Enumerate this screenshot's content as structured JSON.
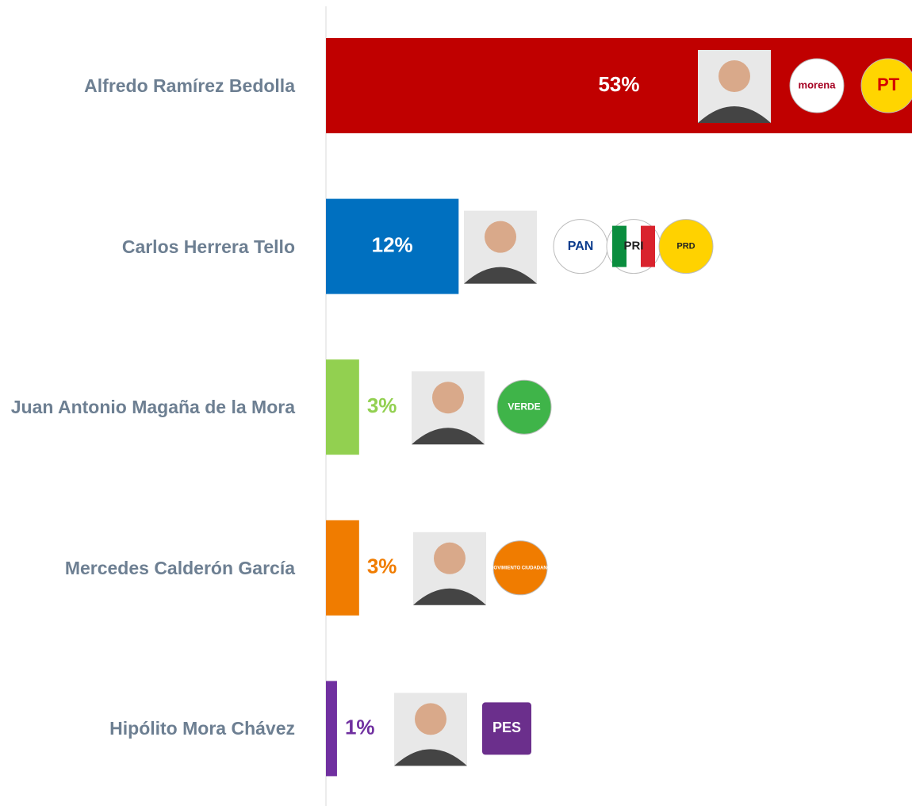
{
  "chart_data": {
    "type": "bar",
    "orientation": "horizontal",
    "categories": [
      "Alfredo Ramírez Bedolla",
      "Carlos Herrera Tello",
      "Juan Antonio Magaña de la Mora",
      "Mercedes Calderón García",
      "Hipólito Mora Chávez"
    ],
    "values": [
      53,
      12,
      3,
      3,
      1
    ],
    "value_labels": [
      "53%",
      "12%",
      "3%",
      "3%",
      "1%"
    ],
    "colors": [
      "#c00000",
      "#0070c0",
      "#92d050",
      "#f07c00",
      "#7030a0"
    ],
    "xlim": [
      0,
      53
    ],
    "logos": [
      [
        "morena",
        "PT"
      ],
      [
        "PAN",
        "PRI",
        "PRD"
      ],
      [
        "VERDE"
      ],
      [
        "MOVIMIENTO CIUDADANO"
      ],
      [
        "PES"
      ]
    ]
  }
}
